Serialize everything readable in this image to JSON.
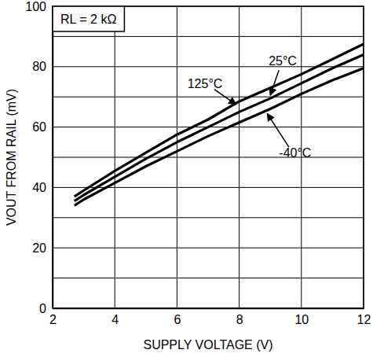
{
  "chart_data": {
    "type": "line",
    "x_label": "SUPPLY VOLTAGE (V)",
    "y_label": "VOUT FROM RAIL (mV)",
    "annotation": "RL = 2 kΩ",
    "x": [
      2.7,
      3,
      4,
      5,
      6,
      7,
      8,
      9,
      10,
      11,
      12
    ],
    "series": [
      {
        "name": "125°C",
        "color": "#000000",
        "values": [
          37,
          39,
          45.5,
          51.5,
          57.5,
          62.5,
          68.5,
          73,
          77.5,
          82.5,
          87.5
        ],
        "label_x": 6.9,
        "label_y": 74,
        "arrow_x": 7.9,
        "arrow_y": 67.5
      },
      {
        "name": "25°C",
        "color": "#000000",
        "values": [
          35.5,
          37.5,
          43.5,
          49.5,
          55,
          60,
          65,
          69.5,
          74.5,
          79.5,
          84
        ],
        "label_x": 9.4,
        "label_y": 81.5,
        "arrow_x": 9.0,
        "arrow_y": 70.5
      },
      {
        "name": "-40°C",
        "color": "#000000",
        "values": [
          34,
          36,
          41.5,
          47,
          52,
          57,
          61.5,
          66,
          71,
          75.5,
          79.5
        ],
        "label_x": 9.8,
        "label_y": 51,
        "arrow_x": 8.9,
        "arrow_y": 64.5
      }
    ],
    "xlim": [
      2,
      12
    ],
    "ylim": [
      0,
      100
    ],
    "xticks": [
      2,
      4,
      6,
      8,
      10,
      12
    ],
    "yticks": [
      0,
      20,
      40,
      60,
      80,
      100
    ],
    "yticks_minor": [
      10,
      30,
      50,
      70,
      90
    ],
    "grid": true
  }
}
